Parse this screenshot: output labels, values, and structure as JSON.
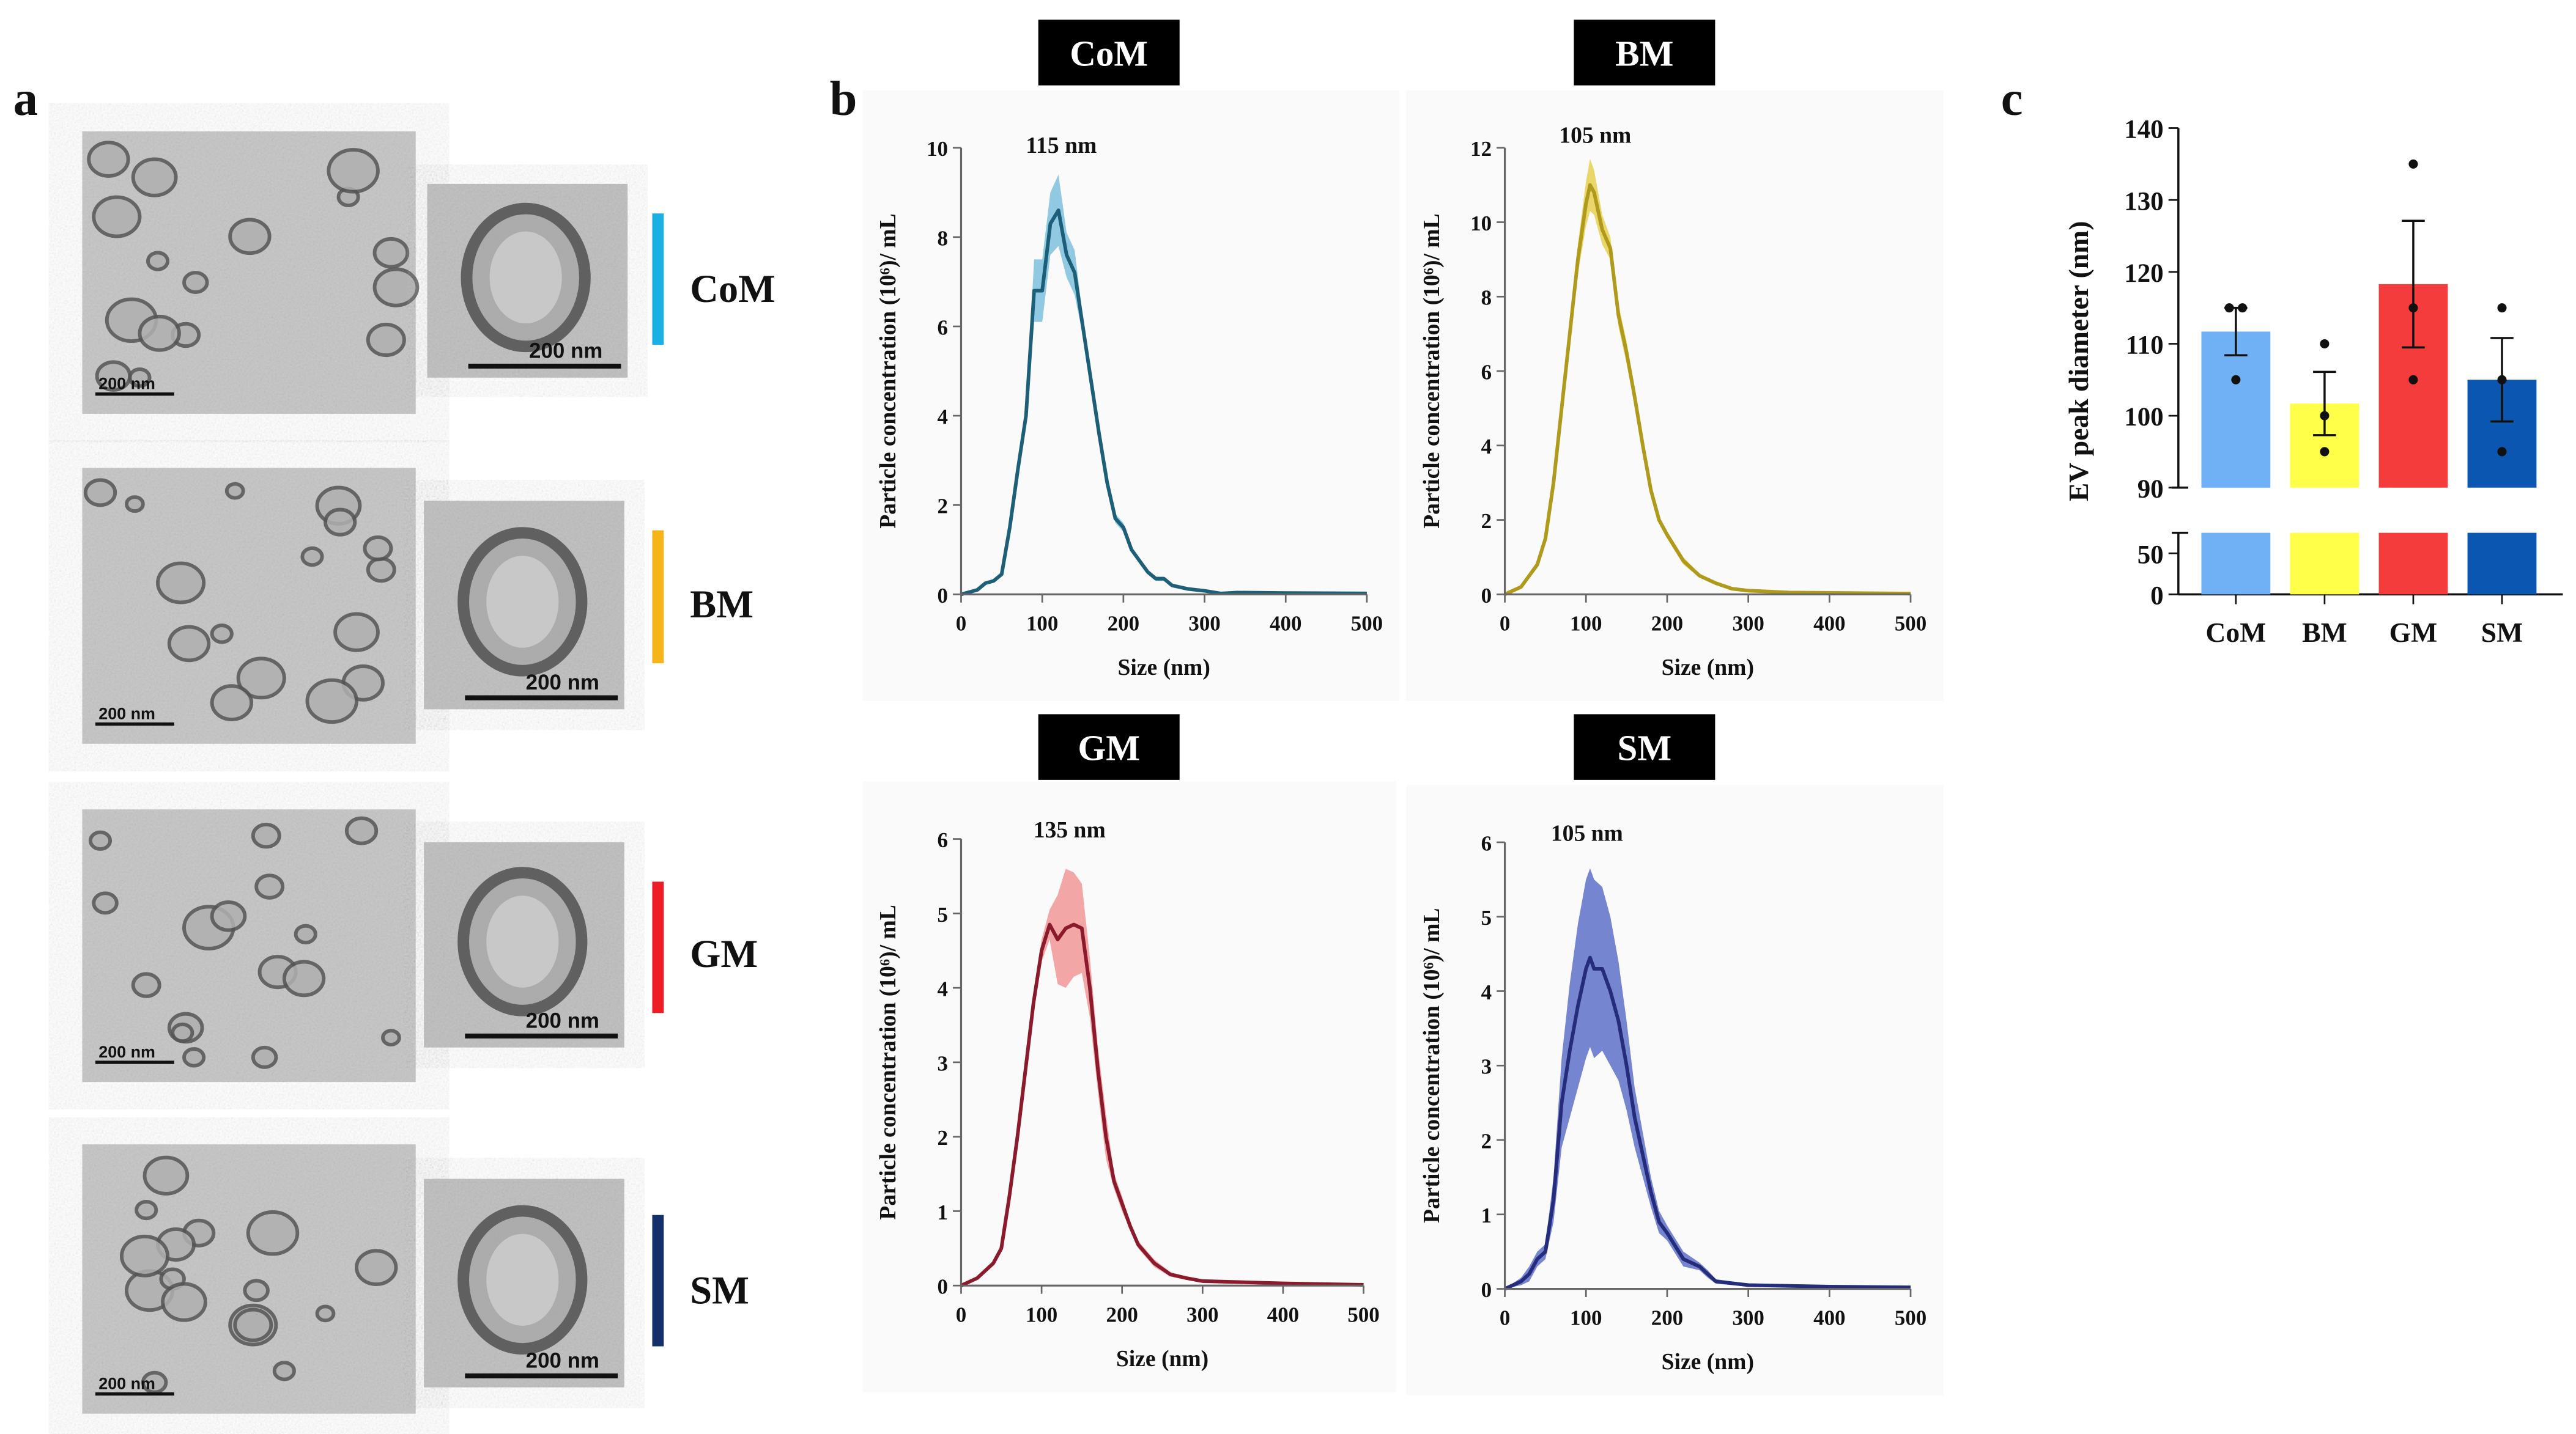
{
  "panels": {
    "a": "a",
    "b": "b",
    "c": "c"
  },
  "tem": {
    "scale_bar_label": "200 nm",
    "groups": [
      {
        "label": "CoM",
        "color": "#1ab0e6"
      },
      {
        "label": "BM",
        "color": "#f4b41a"
      },
      {
        "label": "GM",
        "color": "#ee1c24"
      },
      {
        "label": "SM",
        "color": "#14306a"
      }
    ]
  },
  "chart_data": [
    {
      "type": "area",
      "title": "CoM",
      "annotation": "115 nm",
      "xlabel": "Size (nm)",
      "ylabel": "Particle concentration (10⁶)/ mL",
      "xlim": [
        0,
        500
      ],
      "ylim": [
        0,
        10
      ],
      "xticks": [
        0,
        100,
        200,
        300,
        400,
        500
      ],
      "yticks": [
        0,
        2,
        4,
        6,
        8,
        10
      ],
      "line_color": "#1d5f78",
      "band_color": "#6cb8d8",
      "x": [
        0,
        20,
        30,
        40,
        50,
        60,
        70,
        80,
        90,
        100,
        110,
        120,
        130,
        140,
        150,
        160,
        170,
        180,
        190,
        200,
        210,
        220,
        230,
        240,
        250,
        260,
        280,
        300,
        320,
        340,
        400,
        500
      ],
      "y": [
        0,
        0.1,
        0.25,
        0.3,
        0.45,
        1.5,
        2.8,
        4,
        6.8,
        6.8,
        8.3,
        8.6,
        7.6,
        7.2,
        6,
        4.8,
        3.6,
        2.5,
        1.7,
        1.5,
        1,
        0.75,
        0.5,
        0.35,
        0.35,
        0.2,
        0.12,
        0.08,
        0.02,
        0.04,
        0.03,
        0.02
      ],
      "err": [
        0,
        0,
        0,
        0,
        0,
        0.1,
        0.1,
        0.2,
        0.7,
        0.7,
        0.7,
        0.8,
        0.5,
        0.5,
        0.2,
        0.1,
        0.1,
        0.1,
        0.1,
        0.1,
        0.05,
        0.05,
        0.05,
        0.05,
        0.05,
        0.02,
        0.02,
        0.02,
        0.02,
        0.02,
        0.02,
        0.01
      ]
    },
    {
      "type": "area",
      "title": "BM",
      "annotation": "105 nm",
      "xlabel": "Size (nm)",
      "ylabel": "Particle concentration (10⁶)/ mL",
      "xlim": [
        0,
        500
      ],
      "ylim": [
        0,
        12
      ],
      "xticks": [
        0,
        100,
        200,
        300,
        400,
        500
      ],
      "yticks": [
        0,
        2,
        4,
        6,
        8,
        10,
        12
      ],
      "line_color": "#b09a1c",
      "band_color": "#e6c93c",
      "x": [
        0,
        20,
        40,
        50,
        60,
        70,
        80,
        90,
        100,
        105,
        110,
        120,
        130,
        140,
        150,
        160,
        170,
        180,
        190,
        200,
        220,
        240,
        260,
        280,
        300,
        350,
        500
      ],
      "y": [
        0,
        0.2,
        0.8,
        1.5,
        3,
        5,
        7,
        9,
        10.5,
        11,
        10.8,
        9.8,
        9.3,
        7.5,
        6.5,
        5.3,
        4,
        2.8,
        2,
        1.6,
        0.9,
        0.5,
        0.3,
        0.15,
        0.1,
        0.05,
        0.02
      ],
      "err": [
        0,
        0,
        0.1,
        0.1,
        0.2,
        0.2,
        0.3,
        0.4,
        0.6,
        0.7,
        0.6,
        0.4,
        0.3,
        0.3,
        0.3,
        0.2,
        0.2,
        0.2,
        0.1,
        0.1,
        0.1,
        0.05,
        0.05,
        0.02,
        0.02,
        0.02,
        0.01
      ]
    },
    {
      "type": "area",
      "title": "GM",
      "annotation": "135 nm",
      "xlabel": "Size (nm)",
      "ylabel": "Particle concentration (10⁶)/ mL",
      "xlim": [
        0,
        500
      ],
      "ylim": [
        0,
        6
      ],
      "xticks": [
        0,
        100,
        200,
        300,
        400,
        500
      ],
      "yticks": [
        0,
        1,
        2,
        3,
        4,
        5,
        6
      ],
      "line_color": "#8a1a2c",
      "band_color": "#f08a8a",
      "x": [
        0,
        20,
        40,
        50,
        60,
        70,
        80,
        90,
        100,
        110,
        120,
        130,
        140,
        150,
        160,
        170,
        180,
        190,
        200,
        210,
        220,
        240,
        260,
        280,
        300,
        400,
        500
      ],
      "y": [
        0,
        0.1,
        0.3,
        0.5,
        1.2,
        2,
        2.9,
        3.8,
        4.5,
        4.85,
        4.65,
        4.8,
        4.85,
        4.8,
        4,
        2.9,
        2,
        1.4,
        1.1,
        0.8,
        0.55,
        0.3,
        0.15,
        0.1,
        0.06,
        0.03,
        0.01
      ],
      "err": [
        0,
        0,
        0.02,
        0.05,
        0.05,
        0.1,
        0.1,
        0.1,
        0.15,
        0.2,
        0.6,
        0.8,
        0.7,
        0.6,
        0.4,
        0.3,
        0.3,
        0.1,
        0.1,
        0.05,
        0.05,
        0.05,
        0.03,
        0.02,
        0.02,
        0.01,
        0.01
      ]
    },
    {
      "type": "area",
      "title": "SM",
      "annotation": "105 nm",
      "xlabel": "Size (nm)",
      "ylabel": "Particle concentration (10⁶)/ mL",
      "xlim": [
        0,
        500
      ],
      "ylim": [
        0,
        6
      ],
      "xticks": [
        0,
        100,
        200,
        300,
        400,
        500
      ],
      "yticks": [
        0,
        1,
        2,
        3,
        4,
        5,
        6
      ],
      "line_color": "#262c7c",
      "band_color": "#4a5ec0",
      "x": [
        0,
        20,
        30,
        40,
        50,
        60,
        70,
        80,
        90,
        100,
        105,
        110,
        120,
        130,
        140,
        150,
        160,
        170,
        180,
        190,
        200,
        220,
        240,
        250,
        260,
        300,
        400,
        500
      ],
      "y": [
        0,
        0.1,
        0.2,
        0.4,
        0.5,
        1.2,
        2.5,
        3.2,
        3.8,
        4.3,
        4.45,
        4.3,
        4.3,
        4.0,
        3.6,
        3.0,
        2.3,
        1.8,
        1.3,
        0.9,
        0.75,
        0.4,
        0.3,
        0.2,
        0.1,
        0.05,
        0.03,
        0.02
      ],
      "err": [
        0,
        0.05,
        0.1,
        0.1,
        0.1,
        0.3,
        0.6,
        0.9,
        1.1,
        1.2,
        1.2,
        1.2,
        1.1,
        1.0,
        0.8,
        0.6,
        0.4,
        0.3,
        0.2,
        0.15,
        0.1,
        0.1,
        0.05,
        0.05,
        0.03,
        0.02,
        0.01,
        0.01
      ]
    },
    {
      "type": "bar",
      "title": "",
      "ylabel": "EV peak diameter (nm)",
      "xlabel": "",
      "categories": [
        "CoM",
        "BM",
        "GM",
        "SM"
      ],
      "values": [
        111.7,
        101.7,
        118.3,
        105.0
      ],
      "sem": [
        3.3,
        4.4,
        8.8,
        5.8
      ],
      "points": [
        [
          115,
          115,
          105
        ],
        [
          110,
          100,
          95
        ],
        [
          135,
          115,
          105
        ],
        [
          115,
          105,
          95
        ]
      ],
      "colors": [
        "#70b0f5",
        "#ffff4a",
        "#f43c3c",
        "#0b56b0"
      ],
      "axis_break": [
        75,
        90
      ],
      "ylim": [
        0,
        140
      ],
      "yticks_lower": [
        0,
        50
      ],
      "yticks_upper": [
        90,
        100,
        110,
        120,
        130,
        140
      ]
    }
  ]
}
